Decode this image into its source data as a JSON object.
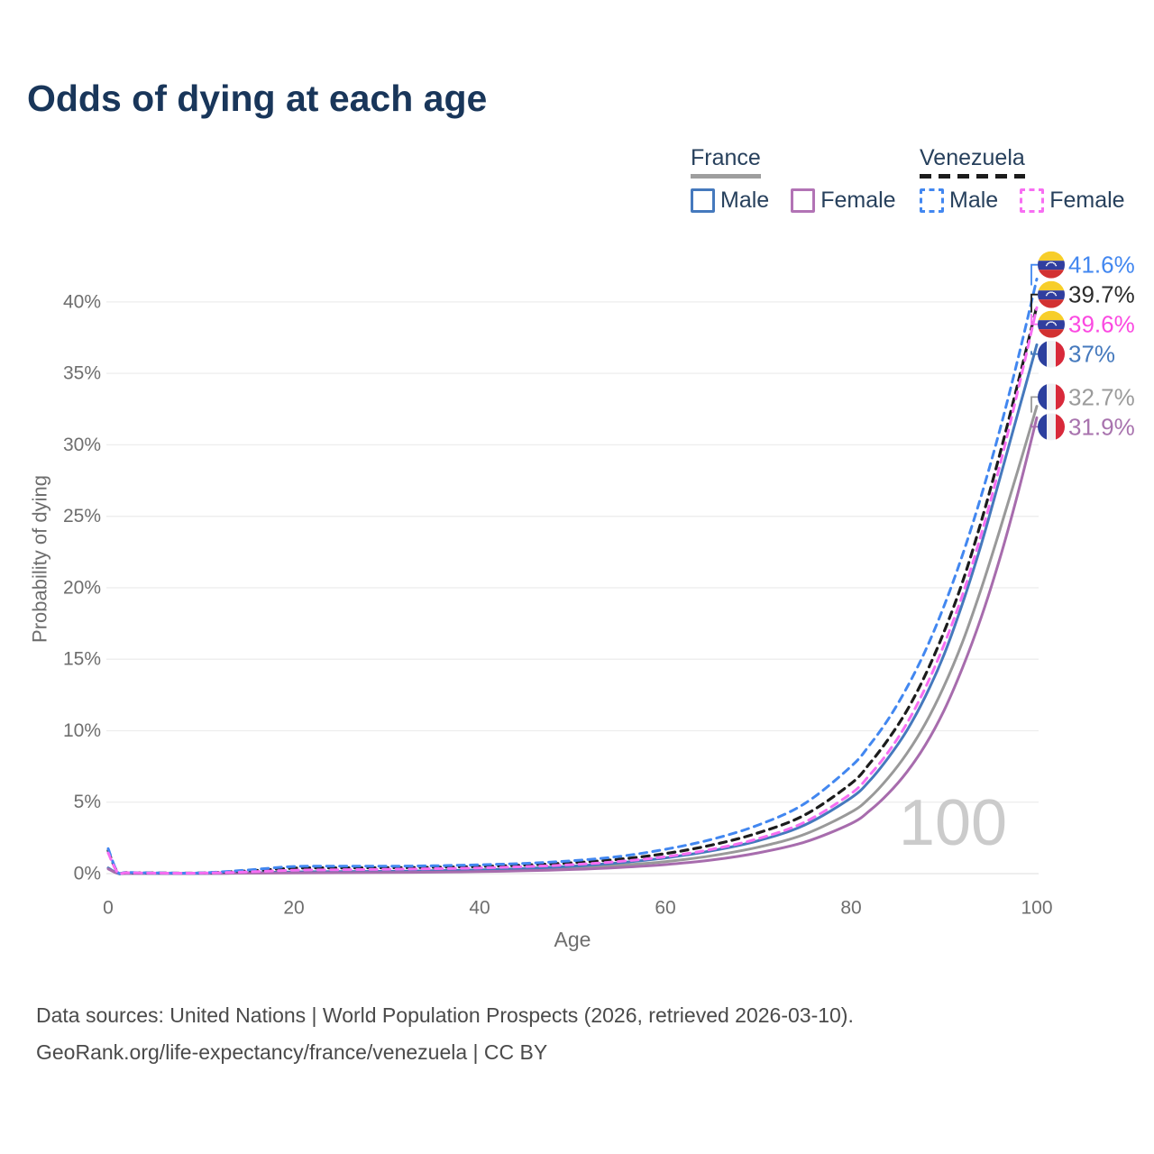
{
  "title": "Odds of dying at each age",
  "legend": {
    "groups": [
      {
        "label": "France",
        "line_style": "solid",
        "underline_color": "#9e9e9e",
        "items": [
          {
            "label": "Male",
            "color": "#4579bd",
            "dashed": false
          },
          {
            "label": "Female",
            "color": "#b273b5",
            "dashed": false
          }
        ]
      },
      {
        "label": "Venezuela",
        "line_style": "dashed",
        "underline_color": "#1c1c1c",
        "items": [
          {
            "label": "Male",
            "color": "#4287f0",
            "dashed": true
          },
          {
            "label": "Female",
            "color": "#f76ef2",
            "dashed": true
          }
        ]
      }
    ]
  },
  "chart_data": {
    "type": "line",
    "title": "Odds of dying at each age",
    "xlabel": "Age",
    "ylabel": "Probability of dying",
    "x_ticks": [
      0,
      20,
      40,
      60,
      80,
      100
    ],
    "y_ticks": [
      "0%",
      "5%",
      "10%",
      "15%",
      "20%",
      "25%",
      "30%",
      "35%",
      "40%"
    ],
    "xlim": [
      0,
      100
    ],
    "ylim": [
      0,
      43
    ],
    "grid": "horizontal",
    "legend_position": "top-right",
    "watermark": "100",
    "x": [
      0,
      1,
      2,
      5,
      10,
      15,
      20,
      25,
      30,
      35,
      40,
      45,
      50,
      55,
      60,
      65,
      70,
      75,
      80,
      82,
      84,
      86,
      88,
      90,
      92,
      94,
      96,
      98,
      100
    ],
    "series": [
      {
        "name": "Venezuela Male",
        "country": "Venezuela",
        "sex": "male",
        "flag": "venezuela",
        "color": "#4287f0",
        "dashed": true,
        "end_label": "41.6%",
        "end_label_color": "#4287f0",
        "values": [
          1.75,
          0.12,
          0.08,
          0.05,
          0.05,
          0.25,
          0.5,
          0.52,
          0.52,
          0.55,
          0.62,
          0.72,
          0.9,
          1.2,
          1.7,
          2.4,
          3.4,
          4.9,
          7.5,
          9.0,
          10.8,
          13.0,
          15.6,
          18.7,
          22.3,
          26.4,
          31.0,
          36.1,
          41.6
        ]
      },
      {
        "name": "Venezuela Both sexes",
        "country": "Venezuela",
        "sex": "both",
        "flag": "venezuela",
        "color": "#1c1c1c",
        "dashed": true,
        "end_label": "39.7%",
        "end_label_color": "#2b2b2b",
        "values": [
          1.6,
          0.11,
          0.07,
          0.045,
          0.045,
          0.18,
          0.38,
          0.4,
          0.41,
          0.44,
          0.5,
          0.6,
          0.76,
          1.0,
          1.4,
          2.0,
          2.85,
          4.1,
          6.3,
          7.7,
          9.4,
          11.4,
          13.9,
          16.9,
          20.4,
          24.6,
          29.3,
          34.4,
          39.7
        ]
      },
      {
        "name": "Venezuela Female",
        "country": "Venezuela",
        "sex": "female",
        "flag": "venezuela",
        "color": "#f76ef2",
        "dashed": true,
        "end_label": "39.6%",
        "end_label_color": "#fb49e1",
        "values": [
          1.45,
          0.1,
          0.06,
          0.04,
          0.04,
          0.12,
          0.24,
          0.27,
          0.3,
          0.34,
          0.4,
          0.49,
          0.63,
          0.85,
          1.18,
          1.7,
          2.45,
          3.6,
          5.6,
          6.9,
          8.5,
          10.5,
          13.0,
          16.0,
          19.5,
          23.7,
          28.5,
          33.9,
          39.6
        ]
      },
      {
        "name": "France Male",
        "country": "France",
        "sex": "male",
        "flag": "france",
        "color": "#4579bd",
        "dashed": false,
        "end_label": "37%",
        "end_label_color": "#4579bd",
        "values": [
          0.4,
          0.03,
          0.02,
          0.015,
          0.015,
          0.05,
          0.12,
          0.14,
          0.16,
          0.2,
          0.26,
          0.36,
          0.52,
          0.76,
          1.1,
          1.6,
          2.3,
          3.4,
          5.3,
          6.5,
          8.1,
          10.0,
          12.4,
          15.3,
          18.9,
          23.0,
          27.6,
          32.3,
          37.0
        ]
      },
      {
        "name": "France Both sexes",
        "country": "France",
        "sex": "both",
        "flag": "france",
        "color": "#999999",
        "dashed": false,
        "end_label": "32.7%",
        "end_label_color": "#9b9b9b",
        "values": [
          0.37,
          0.027,
          0.018,
          0.013,
          0.013,
          0.04,
          0.09,
          0.1,
          0.12,
          0.15,
          0.2,
          0.28,
          0.4,
          0.58,
          0.84,
          1.25,
          1.85,
          2.75,
          4.3,
          5.3,
          6.7,
          8.4,
          10.5,
          13.1,
          16.2,
          19.9,
          24.0,
          28.3,
          32.7
        ]
      },
      {
        "name": "France Female",
        "country": "France",
        "sex": "female",
        "flag": "france",
        "color": "#a76cad",
        "dashed": false,
        "end_label": "31.9%",
        "end_label_color": "#a873ae",
        "values": [
          0.33,
          0.023,
          0.015,
          0.011,
          0.011,
          0.03,
          0.05,
          0.06,
          0.08,
          0.1,
          0.14,
          0.2,
          0.29,
          0.43,
          0.63,
          0.95,
          1.45,
          2.2,
          3.5,
          4.4,
          5.6,
          7.1,
          9.0,
          11.4,
          14.4,
          17.9,
          22.0,
          26.7,
          31.9
        ]
      }
    ]
  },
  "flags": {
    "venezuela": {
      "yellow": "#f7ce2a",
      "blue": "#303e9f",
      "red": "#d23131",
      "stars": "#ffffff"
    },
    "france": {
      "blue": "#2b3f9e",
      "white": "#f0f1f3",
      "red": "#d8293a"
    }
  },
  "footer": {
    "line1": "Data sources: United Nations | World Population Prospects (2026, retrieved 2026-03-10).",
    "line2": "GeoRank.org/life-expectancy/france/venezuela | CC BY"
  }
}
